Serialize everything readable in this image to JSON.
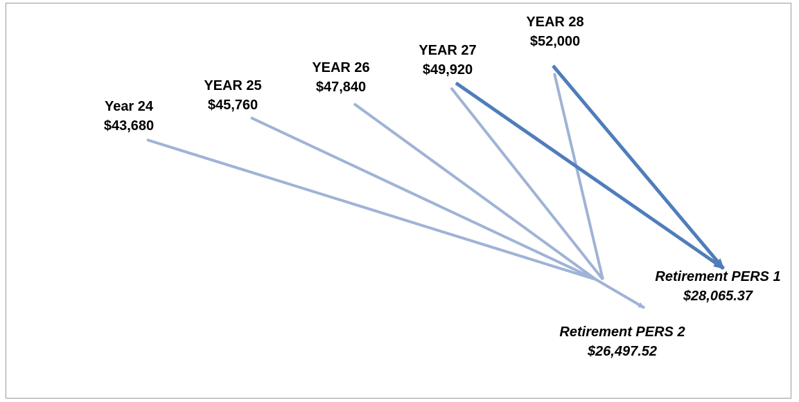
{
  "sources": [
    {
      "year": "Year 24",
      "amount": "$43,680"
    },
    {
      "year": "YEAR 25",
      "amount": "$45,760"
    },
    {
      "year": "YEAR 26",
      "amount": "$47,840"
    },
    {
      "year": "YEAR 27",
      "amount": "$49,920"
    },
    {
      "year": "YEAR 28",
      "amount": "$52,000"
    }
  ],
  "targets": [
    {
      "title": "Retirement PERS 1",
      "amount": "$28,065.37"
    },
    {
      "title": "Retirement PERS 2",
      "amount": "$26,497.52"
    }
  ],
  "colors": {
    "light_arrow": "#9fb3d6",
    "dark_arrow": "#4f7dbb",
    "border": "#9a9a9a"
  }
}
